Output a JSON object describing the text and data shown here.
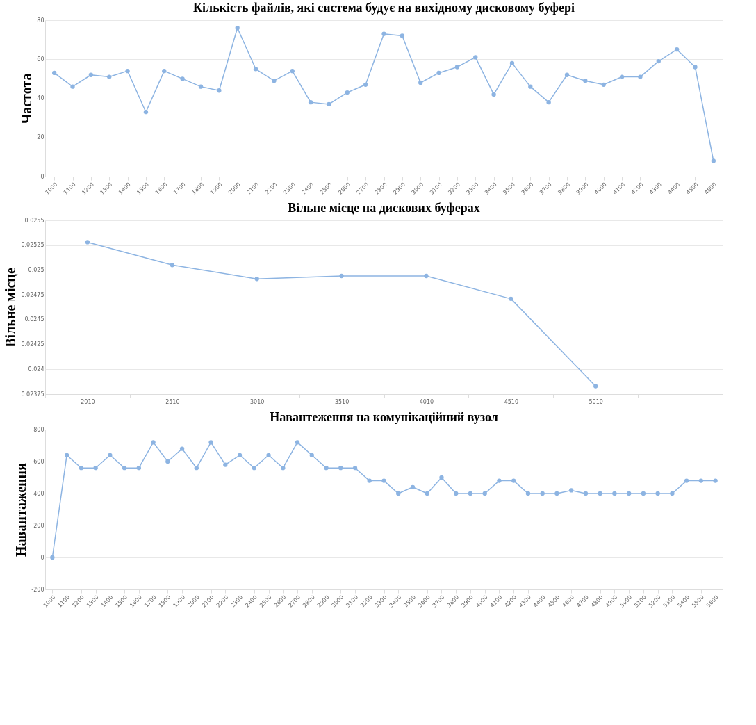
{
  "chart_data": [
    {
      "type": "line",
      "title": "Кількість файлів, які система будує на вихідному дисковому буфері",
      "ylabel": "Частота",
      "color": "#8db4e2",
      "marker": "circle",
      "grid": "y",
      "categories": [
        "1000",
        "1100",
        "1200",
        "1300",
        "1400",
        "1500",
        "1600",
        "1700",
        "1800",
        "1900",
        "2000",
        "2100",
        "2200",
        "2300",
        "2400",
        "2500",
        "2600",
        "2700",
        "2800",
        "2900",
        "3000",
        "3100",
        "3200",
        "3300",
        "3400",
        "3500",
        "3600",
        "3700",
        "3800",
        "3900",
        "4000",
        "4100",
        "4200",
        "4300",
        "4400",
        "4500",
        "4600"
      ],
      "values": [
        53,
        46,
        52,
        51,
        54,
        33,
        54,
        50,
        46,
        44,
        76,
        55,
        49,
        54,
        38,
        37,
        43,
        47,
        73,
        72,
        48,
        53,
        56,
        61,
        42,
        58,
        46,
        38,
        52,
        49,
        47,
        51,
        51,
        59,
        65,
        56,
        8
      ],
      "ylim": [
        0,
        80
      ],
      "yticks": [
        0,
        20,
        40,
        60,
        80
      ]
    },
    {
      "type": "line",
      "title": "Вільне місце на дискових буферах",
      "ylabel": "Вільне місце",
      "color": "#8db4e2",
      "marker": "circle",
      "grid": "y",
      "categories": [
        "2010",
        "2510",
        "3010",
        "3510",
        "4010",
        "4510",
        "5010",
        null
      ],
      "values": [
        0.02528,
        0.02505,
        0.02491,
        0.02494,
        0.02494,
        0.02471,
        0.02383,
        null
      ],
      "ylim": [
        0.02375,
        0.0255
      ],
      "yticks": [
        0.02375,
        0.024,
        0.02425,
        0.0245,
        0.02475,
        0.025,
        0.02525,
        0.0255
      ]
    },
    {
      "type": "line",
      "title": "Навантеження на комунікаційний вузол",
      "ylabel": "Навантаження",
      "color": "#8db4e2",
      "marker": "circle",
      "grid": "y",
      "categories": [
        "1000",
        "1100",
        "1200",
        "1300",
        "1400",
        "1500",
        "1600",
        "1700",
        "1800",
        "1900",
        "2000",
        "2100",
        "2200",
        "2300",
        "2400",
        "2500",
        "2600",
        "2700",
        "2800",
        "2900",
        "3000",
        "3100",
        "3200",
        "3300",
        "3400",
        "3500",
        "3600",
        "3700",
        "3800",
        "3900",
        "4000",
        "4100",
        "4200",
        "4300",
        "4400",
        "4500",
        "4600",
        "4700",
        "4800",
        "4900",
        "5000",
        "5100",
        "5200",
        "5300",
        "5400",
        "5500",
        "5600"
      ],
      "values": [
        0,
        640,
        560,
        560,
        640,
        560,
        560,
        720,
        600,
        680,
        560,
        720,
        580,
        640,
        560,
        640,
        560,
        720,
        640,
        560,
        560,
        560,
        480,
        480,
        400,
        440,
        400,
        500,
        400,
        400,
        400,
        480,
        480,
        400,
        400,
        400,
        420,
        400,
        400,
        400,
        400,
        400,
        400,
        400,
        480,
        480,
        480
      ],
      "ylim": [
        -200,
        800
      ],
      "yticks": [
        -200,
        0,
        200,
        400,
        600,
        800
      ]
    }
  ]
}
